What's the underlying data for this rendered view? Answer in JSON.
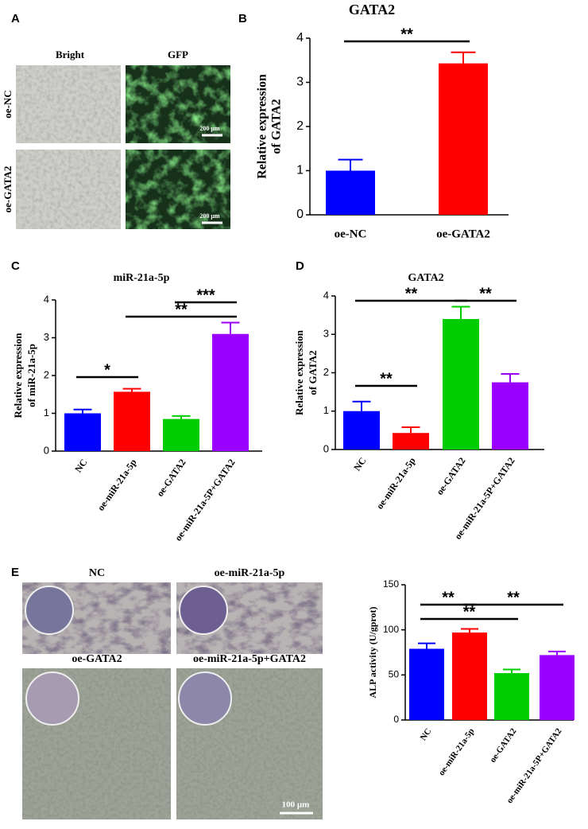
{
  "panels": {
    "letters": [
      "A",
      "B",
      "C",
      "D",
      "E"
    ],
    "a": {
      "columns": [
        "Bright",
        "GFP"
      ],
      "rows": [
        "oe-NC",
        "oe-GATA2"
      ],
      "scale_bar": "200 μm"
    },
    "e": {
      "images": [
        "NC",
        "oe-miR-21a-5p",
        "oe-GATA2",
        "oe-miR-21a-5p+GATA2"
      ],
      "scale_bar": "100 μm"
    }
  },
  "chart_data": [
    {
      "type": "bar",
      "title": "GATA2",
      "ylabel": [
        "Relative expression",
        "of GATA2"
      ],
      "categories": [
        "oe-NC",
        "oe-GATA2"
      ],
      "values": [
        1.0,
        3.43
      ],
      "errors": [
        0.25,
        0.25
      ],
      "colors": [
        "#0000ff",
        "#ff0000"
      ],
      "ylim": [
        0,
        4
      ],
      "yticks": [
        0,
        1,
        2,
        3,
        4
      ],
      "annotations": [
        {
          "text": "**",
          "between": [
            "oe-NC",
            "oe-GATA2"
          ]
        }
      ]
    },
    {
      "type": "bar",
      "title": "miR-21a-5p",
      "ylabel": [
        "Relative expression",
        "of miR-21a-5p"
      ],
      "categories": [
        "NC",
        "oe-miR-21a-5p",
        "oe-GATA2",
        "oe-miR-21a-5P+GATA2"
      ],
      "values": [
        1.0,
        1.57,
        0.85,
        3.1
      ],
      "errors": [
        0.1,
        0.08,
        0.08,
        0.3
      ],
      "colors": [
        "#0000ff",
        "#ff0000",
        "#00cc00",
        "#9900ff"
      ],
      "ylim": [
        0,
        4
      ],
      "yticks": [
        0,
        1,
        2,
        3,
        4
      ],
      "annotations": [
        {
          "text": "*",
          "between": [
            "NC",
            "oe-miR-21a-5p"
          ]
        },
        {
          "text": "**",
          "between": [
            "oe-miR-21a-5p",
            "oe-miR-21a-5P+GATA2"
          ]
        },
        {
          "text": "***",
          "between": [
            "oe-GATA2",
            "oe-miR-21a-5P+GATA2"
          ]
        }
      ]
    },
    {
      "type": "bar",
      "title": "GATA2",
      "ylabel": [
        "Relative expression",
        "of GATA2"
      ],
      "categories": [
        "NC",
        "oe-miR-21a-5p",
        "oe-GATA2",
        "oe-miR-21a-5P+GATA2"
      ],
      "values": [
        1.0,
        0.43,
        3.4,
        1.75
      ],
      "errors": [
        0.25,
        0.15,
        0.32,
        0.22
      ],
      "colors": [
        "#0000ff",
        "#ff0000",
        "#00cc00",
        "#9900ff"
      ],
      "ylim": [
        0,
        4
      ],
      "yticks": [
        0,
        1,
        2,
        3,
        4
      ],
      "annotations": [
        {
          "text": "**",
          "between": [
            "NC",
            "oe-miR-21a-5p"
          ]
        },
        {
          "text": "**",
          "between": [
            "NC",
            "oe-GATA2"
          ]
        },
        {
          "text": "**",
          "between": [
            "oe-GATA2",
            "oe-miR-21a-5P+GATA2"
          ]
        }
      ]
    },
    {
      "type": "bar",
      "ylabel": [
        "ALP activity (U/gprot)"
      ],
      "categories": [
        "NC",
        "oe-miR-21a-5p",
        "oe-GATA2",
        "oe-miR-21a-5P+GATA2"
      ],
      "values": [
        79,
        97,
        52,
        72
      ],
      "errors": [
        6,
        4,
        4,
        4
      ],
      "colors": [
        "#0000ff",
        "#ff0000",
        "#00cc00",
        "#9900ff"
      ],
      "ylim": [
        0,
        150
      ],
      "yticks": [
        0,
        50,
        100,
        150
      ],
      "annotations": [
        {
          "text": "**",
          "between": [
            "NC",
            "oe-miR-21a-5p"
          ]
        },
        {
          "text": "**",
          "between": [
            "NC",
            "oe-GATA2"
          ]
        },
        {
          "text": "**",
          "between": [
            "oe-miR-21a-5p",
            "oe-miR-21a-5P+GATA2"
          ]
        }
      ]
    }
  ]
}
